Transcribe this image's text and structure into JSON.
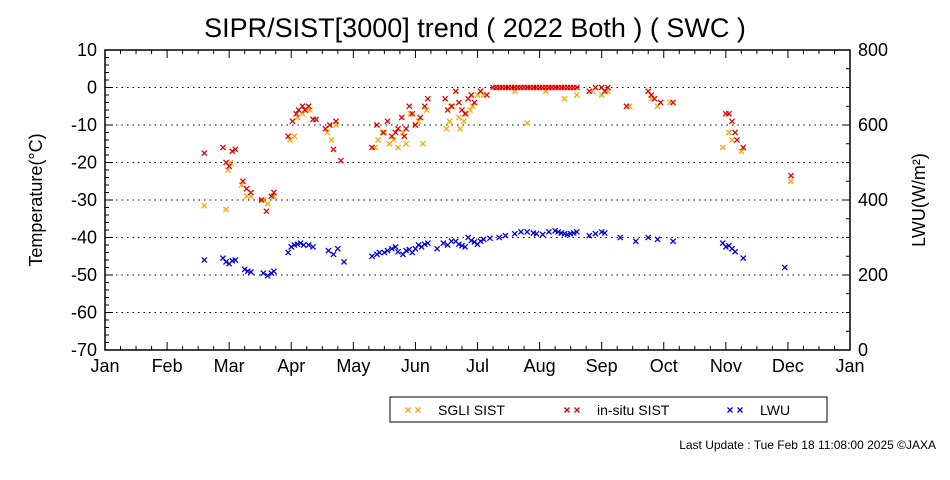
{
  "chart_data": {
    "type": "scatter",
    "title": "SIPR/SIST[3000] trend ( 2022 Both ) ( SWC )",
    "xlabel": "",
    "ylabel": "Temperature(°C)",
    "y2label": "LWU(W/m²)",
    "xlim": [
      0,
      12
    ],
    "ylim": [
      -70,
      10
    ],
    "y2lim": [
      0,
      800
    ],
    "x_ticks": [
      0,
      1,
      2,
      3,
      4,
      5,
      6,
      7,
      8,
      9,
      10,
      11,
      12
    ],
    "x_tick_labels": [
      "Jan",
      "Feb",
      "Mar",
      "Apr",
      "May",
      "Jun",
      "Jul",
      "Aug",
      "Sep",
      "Oct",
      "Nov",
      "Dec",
      "Jan"
    ],
    "y_ticks": [
      10,
      0,
      -10,
      -20,
      -30,
      -40,
      -50,
      -60,
      -70
    ],
    "y2_ticks": [
      800,
      600,
      400,
      200,
      0
    ],
    "grid": "horizontal dotted",
    "legend_position": "bottom",
    "series": [
      {
        "name": "SGLI SIST",
        "color": "#ffa500",
        "axis": "left",
        "marker": "x",
        "points": [
          [
            1.6,
            -31.5
          ],
          [
            1.95,
            -32.5
          ],
          [
            1.98,
            -22
          ],
          [
            2.02,
            -20
          ],
          [
            2.2,
            -26
          ],
          [
            2.28,
            -29
          ],
          [
            2.35,
            -29
          ],
          [
            2.55,
            -30
          ],
          [
            2.62,
            -31
          ],
          [
            2.72,
            -29
          ],
          [
            2.98,
            -14
          ],
          [
            3.05,
            -13
          ],
          [
            3.1,
            -8
          ],
          [
            3.18,
            -7
          ],
          [
            3.25,
            -6
          ],
          [
            3.3,
            -6
          ],
          [
            3.58,
            -12
          ],
          [
            3.65,
            -14
          ],
          [
            3.72,
            -10
          ],
          [
            4.35,
            -16
          ],
          [
            4.4,
            -14
          ],
          [
            4.5,
            -12
          ],
          [
            4.58,
            -15
          ],
          [
            4.65,
            -14
          ],
          [
            4.72,
            -16
          ],
          [
            4.8,
            -12
          ],
          [
            4.85,
            -15
          ],
          [
            4.92,
            -7
          ],
          [
            5.0,
            -10
          ],
          [
            5.05,
            -9
          ],
          [
            5.12,
            -15
          ],
          [
            5.18,
            -6
          ],
          [
            5.5,
            -11
          ],
          [
            5.55,
            -9
          ],
          [
            5.6,
            -5
          ],
          [
            5.7,
            -8
          ],
          [
            5.72,
            -11
          ],
          [
            5.78,
            -9
          ],
          [
            5.82,
            -7
          ],
          [
            5.88,
            -6
          ],
          [
            5.92,
            -5
          ],
          [
            6.0,
            -2
          ],
          [
            6.05,
            -1
          ],
          [
            6.1,
            -2
          ],
          [
            6.3,
            0
          ],
          [
            6.45,
            0
          ],
          [
            6.6,
            -1
          ],
          [
            6.8,
            -9.5
          ],
          [
            6.9,
            0
          ],
          [
            7.1,
            -1
          ],
          [
            7.2,
            0
          ],
          [
            7.4,
            -3
          ],
          [
            7.6,
            -2
          ],
          [
            7.85,
            -1
          ],
          [
            8.0,
            -2
          ],
          [
            8.1,
            -1
          ],
          [
            8.45,
            -5
          ],
          [
            8.8,
            -3
          ],
          [
            8.9,
            -5
          ],
          [
            9.1,
            -4
          ],
          [
            9.95,
            -16
          ],
          [
            10.05,
            -12
          ],
          [
            10.1,
            -14
          ],
          [
            10.25,
            -17
          ],
          [
            11.05,
            -25
          ]
        ]
      },
      {
        "name": "in-situ SIST",
        "color": "#e00000",
        "axis": "left",
        "marker": "x",
        "points": [
          [
            1.6,
            -17.5
          ],
          [
            1.9,
            -16
          ],
          [
            1.95,
            -20
          ],
          [
            2.0,
            -21
          ],
          [
            2.05,
            -17
          ],
          [
            2.1,
            -16.5
          ],
          [
            2.22,
            -25
          ],
          [
            2.28,
            -27
          ],
          [
            2.35,
            -28
          ],
          [
            2.52,
            -30
          ],
          [
            2.6,
            -33
          ],
          [
            2.68,
            -29
          ],
          [
            2.72,
            -28
          ],
          [
            2.95,
            -13
          ],
          [
            3.02,
            -9
          ],
          [
            3.08,
            -7
          ],
          [
            3.12,
            -6
          ],
          [
            3.18,
            -5
          ],
          [
            3.22,
            -6
          ],
          [
            3.28,
            -5
          ],
          [
            3.35,
            -8.5
          ],
          [
            3.4,
            -8.5
          ],
          [
            3.55,
            -11
          ],
          [
            3.62,
            -10
          ],
          [
            3.68,
            -16.5
          ],
          [
            3.72,
            -9
          ],
          [
            3.8,
            -19.5
          ],
          [
            4.3,
            -16
          ],
          [
            4.38,
            -10
          ],
          [
            4.48,
            -12
          ],
          [
            4.55,
            -9
          ],
          [
            4.62,
            -13
          ],
          [
            4.68,
            -12
          ],
          [
            4.72,
            -11
          ],
          [
            4.78,
            -8
          ],
          [
            4.82,
            -13
          ],
          [
            4.85,
            -11
          ],
          [
            4.9,
            -5
          ],
          [
            4.95,
            -7
          ],
          [
            5.0,
            -10
          ],
          [
            5.08,
            -8
          ],
          [
            5.15,
            -5
          ],
          [
            5.2,
            -3
          ],
          [
            5.48,
            -3
          ],
          [
            5.52,
            -6
          ],
          [
            5.58,
            -5
          ],
          [
            5.65,
            -1
          ],
          [
            5.7,
            -4
          ],
          [
            5.75,
            -6
          ],
          [
            5.8,
            -7
          ],
          [
            5.85,
            -3
          ],
          [
            5.9,
            -2
          ],
          [
            5.95,
            -4
          ],
          [
            6.05,
            -1
          ],
          [
            6.15,
            -2
          ],
          [
            6.25,
            0
          ],
          [
            6.3,
            0
          ],
          [
            6.35,
            0
          ],
          [
            6.4,
            0
          ],
          [
            6.45,
            0
          ],
          [
            6.5,
            0
          ],
          [
            6.55,
            0
          ],
          [
            6.6,
            0
          ],
          [
            6.65,
            0
          ],
          [
            6.7,
            0
          ],
          [
            6.75,
            0
          ],
          [
            6.8,
            0
          ],
          [
            6.85,
            0
          ],
          [
            6.9,
            0
          ],
          [
            6.95,
            0
          ],
          [
            7.0,
            0
          ],
          [
            7.05,
            0
          ],
          [
            7.1,
            0
          ],
          [
            7.15,
            0
          ],
          [
            7.2,
            0
          ],
          [
            7.25,
            0
          ],
          [
            7.3,
            0
          ],
          [
            7.35,
            0
          ],
          [
            7.4,
            0
          ],
          [
            7.45,
            0
          ],
          [
            7.5,
            0
          ],
          [
            7.55,
            0
          ],
          [
            7.6,
            0
          ],
          [
            7.8,
            -1
          ],
          [
            7.9,
            0
          ],
          [
            8.0,
            0
          ],
          [
            8.05,
            -1
          ],
          [
            8.1,
            0
          ],
          [
            8.4,
            -5
          ],
          [
            8.75,
            -1
          ],
          [
            8.8,
            -2
          ],
          [
            8.85,
            -3
          ],
          [
            8.95,
            -4
          ],
          [
            9.15,
            -4
          ],
          [
            10.0,
            -7
          ],
          [
            10.05,
            -7
          ],
          [
            10.1,
            -9
          ],
          [
            10.15,
            -12
          ],
          [
            10.18,
            -14
          ],
          [
            10.28,
            -16
          ],
          [
            11.05,
            -23.5
          ]
        ]
      },
      {
        "name": "LWU",
        "color": "#0000dd",
        "axis": "right",
        "marker": "x",
        "points": [
          [
            1.6,
            240
          ],
          [
            1.9,
            245
          ],
          [
            1.95,
            235
          ],
          [
            2.0,
            230
          ],
          [
            2.05,
            238
          ],
          [
            2.1,
            240
          ],
          [
            2.25,
            215
          ],
          [
            2.3,
            210
          ],
          [
            2.35,
            208
          ],
          [
            2.55,
            205
          ],
          [
            2.62,
            198
          ],
          [
            2.68,
            205
          ],
          [
            2.72,
            210
          ],
          [
            2.95,
            260
          ],
          [
            3.0,
            275
          ],
          [
            3.05,
            280
          ],
          [
            3.1,
            282
          ],
          [
            3.15,
            285
          ],
          [
            3.2,
            280
          ],
          [
            3.28,
            280
          ],
          [
            3.35,
            275
          ],
          [
            3.6,
            265
          ],
          [
            3.68,
            255
          ],
          [
            3.75,
            270
          ],
          [
            3.85,
            235
          ],
          [
            4.3,
            250
          ],
          [
            4.38,
            255
          ],
          [
            4.42,
            260
          ],
          [
            4.5,
            260
          ],
          [
            4.55,
            265
          ],
          [
            4.62,
            270
          ],
          [
            4.68,
            275
          ],
          [
            4.72,
            262
          ],
          [
            4.8,
            255
          ],
          [
            4.85,
            265
          ],
          [
            4.9,
            268
          ],
          [
            4.95,
            260
          ],
          [
            5.0,
            270
          ],
          [
            5.05,
            280
          ],
          [
            5.1,
            275
          ],
          [
            5.15,
            282
          ],
          [
            5.2,
            285
          ],
          [
            5.35,
            270
          ],
          [
            5.45,
            285
          ],
          [
            5.52,
            280
          ],
          [
            5.58,
            290
          ],
          [
            5.65,
            290
          ],
          [
            5.7,
            282
          ],
          [
            5.75,
            278
          ],
          [
            5.8,
            275
          ],
          [
            5.85,
            300
          ],
          [
            5.9,
            292
          ],
          [
            5.95,
            288
          ],
          [
            6.0,
            282
          ],
          [
            6.05,
            290
          ],
          [
            6.1,
            295
          ],
          [
            6.2,
            298
          ],
          [
            6.35,
            300
          ],
          [
            6.45,
            305
          ],
          [
            6.6,
            310
          ],
          [
            6.7,
            315
          ],
          [
            6.8,
            315
          ],
          [
            6.9,
            312
          ],
          [
            6.95,
            310
          ],
          [
            7.05,
            308
          ],
          [
            7.15,
            315
          ],
          [
            7.25,
            318
          ],
          [
            7.3,
            315
          ],
          [
            7.35,
            312
          ],
          [
            7.4,
            310
          ],
          [
            7.45,
            308
          ],
          [
            7.5,
            310
          ],
          [
            7.55,
            312
          ],
          [
            7.6,
            315
          ],
          [
            7.8,
            305
          ],
          [
            7.9,
            310
          ],
          [
            8.0,
            315
          ],
          [
            8.05,
            312
          ],
          [
            8.3,
            300
          ],
          [
            8.55,
            290
          ],
          [
            8.75,
            300
          ],
          [
            8.9,
            295
          ],
          [
            9.15,
            290
          ],
          [
            9.95,
            285
          ],
          [
            10.0,
            275
          ],
          [
            10.05,
            278
          ],
          [
            10.1,
            270
          ],
          [
            10.15,
            262
          ],
          [
            10.28,
            245
          ],
          [
            10.95,
            220
          ]
        ]
      }
    ]
  },
  "footer": {
    "last_update": "Last Update : Tue Feb 18 11:08:00 2025  ©JAXA"
  }
}
